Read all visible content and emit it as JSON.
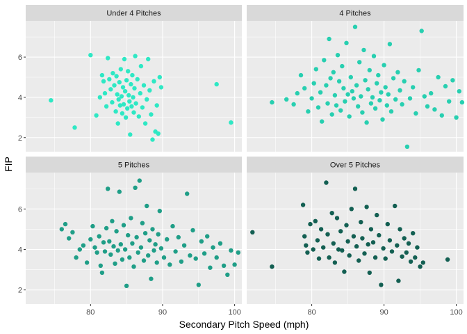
{
  "chart_data": {
    "type": "scatter",
    "xlabel": "Secondary Pitch Speed (mph)",
    "ylabel": "FIP",
    "xlim": [
      71,
      101
    ],
    "ylim": [
      1.3,
      7.8
    ],
    "x_ticks": [
      "80",
      "90",
      "100"
    ],
    "y_ticks": [
      "2",
      "4",
      "6"
    ],
    "grid": true,
    "facets": [
      {
        "name": "Under 4 Pitches",
        "color": "#2ee8c4",
        "points": [
          [
            74.5,
            3.85
          ],
          [
            77.8,
            2.5
          ],
          [
            80.0,
            6.1
          ],
          [
            80.8,
            3.1
          ],
          [
            81.3,
            4.0
          ],
          [
            81.6,
            5.1
          ],
          [
            81.8,
            4.8
          ],
          [
            82.0,
            4.2
          ],
          [
            82.2,
            3.55
          ],
          [
            82.4,
            5.95
          ],
          [
            82.6,
            4.9
          ],
          [
            82.8,
            4.4
          ],
          [
            83.0,
            3.75
          ],
          [
            83.1,
            5.2
          ],
          [
            83.3,
            4.6
          ],
          [
            83.5,
            3.3
          ],
          [
            83.6,
            5.05
          ],
          [
            83.7,
            4.15
          ],
          [
            83.8,
            2.7
          ],
          [
            83.9,
            3.9
          ],
          [
            84.0,
            4.75
          ],
          [
            84.1,
            3.6
          ],
          [
            84.2,
            5.4
          ],
          [
            84.3,
            4.05
          ],
          [
            84.4,
            3.2
          ],
          [
            84.5,
            4.5
          ],
          [
            84.6,
            3.65
          ],
          [
            84.7,
            5.9
          ],
          [
            84.8,
            4.3
          ],
          [
            84.9,
            3.0
          ],
          [
            85.0,
            4.85
          ],
          [
            85.1,
            3.45
          ],
          [
            85.2,
            5.3
          ],
          [
            85.3,
            4.1
          ],
          [
            85.4,
            3.8
          ],
          [
            85.5,
            2.15
          ],
          [
            85.6,
            4.65
          ],
          [
            85.7,
            3.55
          ],
          [
            85.8,
            5.1
          ],
          [
            85.9,
            4.0
          ],
          [
            86.0,
            3.25
          ],
          [
            86.1,
            4.45
          ],
          [
            86.2,
            6.05
          ],
          [
            86.3,
            3.7
          ],
          [
            86.5,
            4.9
          ],
          [
            86.7,
            3.05
          ],
          [
            86.9,
            4.2
          ],
          [
            87.0,
            5.55
          ],
          [
            87.2,
            3.5
          ],
          [
            87.4,
            4.6
          ],
          [
            87.6,
            2.7
          ],
          [
            87.8,
            3.9
          ],
          [
            88.0,
            5.9
          ],
          [
            88.2,
            4.35
          ],
          [
            88.4,
            3.15
          ],
          [
            88.6,
            1.9
          ],
          [
            88.8,
            4.8
          ],
          [
            89.0,
            2.3
          ],
          [
            89.2,
            3.6
          ],
          [
            89.4,
            2.2
          ],
          [
            89.6,
            5.0
          ],
          [
            89.8,
            4.5
          ],
          [
            97.5,
            4.65
          ],
          [
            99.5,
            2.75
          ]
        ]
      },
      {
        "name": "4 Pitches",
        "color": "#27cfb0",
        "points": [
          [
            74.5,
            3.75
          ],
          [
            76.5,
            3.9
          ],
          [
            77.5,
            3.65
          ],
          [
            78.0,
            4.2
          ],
          [
            78.5,
            5.1
          ],
          [
            79.0,
            4.45
          ],
          [
            79.5,
            3.3
          ],
          [
            80.0,
            3.95
          ],
          [
            80.3,
            4.7
          ],
          [
            80.6,
            5.4
          ],
          [
            80.9,
            3.5
          ],
          [
            81.2,
            4.25
          ],
          [
            81.4,
            2.8
          ],
          [
            81.7,
            5.85
          ],
          [
            82.0,
            4.6
          ],
          [
            82.2,
            3.7
          ],
          [
            82.4,
            6.9
          ],
          [
            82.6,
            4.95
          ],
          [
            82.8,
            3.15
          ],
          [
            83.0,
            5.25
          ],
          [
            83.2,
            4.1
          ],
          [
            83.4,
            3.6
          ],
          [
            83.6,
            6.1
          ],
          [
            83.8,
            4.8
          ],
          [
            84.0,
            3.35
          ],
          [
            84.2,
            5.55
          ],
          [
            84.4,
            4.45
          ],
          [
            84.6,
            3.8
          ],
          [
            84.8,
            6.7
          ],
          [
            85.0,
            4.15
          ],
          [
            85.2,
            3.05
          ],
          [
            85.4,
            5.0
          ],
          [
            85.6,
            4.3
          ],
          [
            85.8,
            3.95
          ],
          [
            86.0,
            7.5
          ],
          [
            86.2,
            4.6
          ],
          [
            86.4,
            3.55
          ],
          [
            86.6,
            5.75
          ],
          [
            86.8,
            4.05
          ],
          [
            87.0,
            3.25
          ],
          [
            87.2,
            6.35
          ],
          [
            87.4,
            4.85
          ],
          [
            87.6,
            2.75
          ],
          [
            87.8,
            4.4
          ],
          [
            88.0,
            5.35
          ],
          [
            88.2,
            3.7
          ],
          [
            88.4,
            4.0
          ],
          [
            88.6,
            6.05
          ],
          [
            88.8,
            3.45
          ],
          [
            89.0,
            4.7
          ],
          [
            89.2,
            5.1
          ],
          [
            89.4,
            3.85
          ],
          [
            89.6,
            4.25
          ],
          [
            89.8,
            2.9
          ],
          [
            90.0,
            5.6
          ],
          [
            90.2,
            4.5
          ],
          [
            90.4,
            3.6
          ],
          [
            90.6,
            4.15
          ],
          [
            90.8,
            6.65
          ],
          [
            91.0,
            3.3
          ],
          [
            91.3,
            4.95
          ],
          [
            91.6,
            3.9
          ],
          [
            91.9,
            5.25
          ],
          [
            92.2,
            4.35
          ],
          [
            92.5,
            3.65
          ],
          [
            92.8,
            4.8
          ],
          [
            93.2,
            1.55
          ],
          [
            93.6,
            3.95
          ],
          [
            94.0,
            4.5
          ],
          [
            94.4,
            3.2
          ],
          [
            94.8,
            5.35
          ],
          [
            95.2,
            7.3
          ],
          [
            95.6,
            4.05
          ],
          [
            96.0,
            3.55
          ],
          [
            96.5,
            4.2
          ],
          [
            97.0,
            3.4
          ],
          [
            97.5,
            5.0
          ],
          [
            98.0,
            3.1
          ],
          [
            98.5,
            4.55
          ],
          [
            99.0,
            3.8
          ],
          [
            99.5,
            4.85
          ],
          [
            100.0,
            3.0
          ],
          [
            100.4,
            4.3
          ],
          [
            100.8,
            3.75
          ]
        ]
      },
      {
        "name": "5 Pitches",
        "color": "#1f9e87",
        "points": [
          [
            76.0,
            5.0
          ],
          [
            76.5,
            5.25
          ],
          [
            77.0,
            4.55
          ],
          [
            77.5,
            4.85
          ],
          [
            78.0,
            3.6
          ],
          [
            78.5,
            4.0
          ],
          [
            79.0,
            4.2
          ],
          [
            79.5,
            3.35
          ],
          [
            80.0,
            4.5
          ],
          [
            80.3,
            5.15
          ],
          [
            80.6,
            4.1
          ],
          [
            80.9,
            3.85
          ],
          [
            81.2,
            4.65
          ],
          [
            81.4,
            3.2
          ],
          [
            81.6,
            2.85
          ],
          [
            81.8,
            4.35
          ],
          [
            82.0,
            3.9
          ],
          [
            82.2,
            5.05
          ],
          [
            82.4,
            7.0
          ],
          [
            82.6,
            4.4
          ],
          [
            82.8,
            3.75
          ],
          [
            83.0,
            5.4
          ],
          [
            83.2,
            4.15
          ],
          [
            83.4,
            3.3
          ],
          [
            83.6,
            4.9
          ],
          [
            83.8,
            3.95
          ],
          [
            84.0,
            6.85
          ],
          [
            84.2,
            4.25
          ],
          [
            84.4,
            3.5
          ],
          [
            84.6,
            5.2
          ],
          [
            84.8,
            4.0
          ],
          [
            85.0,
            2.2
          ],
          [
            85.2,
            4.7
          ],
          [
            85.4,
            3.6
          ],
          [
            85.6,
            5.55
          ],
          [
            85.8,
            4.3
          ],
          [
            86.0,
            3.15
          ],
          [
            86.2,
            7.05
          ],
          [
            86.4,
            4.6
          ],
          [
            86.6,
            3.85
          ],
          [
            86.8,
            7.4
          ],
          [
            87.0,
            4.1
          ],
          [
            87.2,
            5.3
          ],
          [
            87.4,
            3.45
          ],
          [
            87.6,
            4.8
          ],
          [
            87.8,
            6.15
          ],
          [
            88.0,
            3.7
          ],
          [
            88.2,
            4.45
          ],
          [
            88.4,
            2.55
          ],
          [
            88.6,
            5.0
          ],
          [
            88.8,
            3.95
          ],
          [
            89.0,
            4.25
          ],
          [
            89.2,
            3.35
          ],
          [
            89.4,
            4.75
          ],
          [
            89.6,
            5.9
          ],
          [
            89.8,
            4.05
          ],
          [
            90.2,
            3.6
          ],
          [
            90.6,
            4.5
          ],
          [
            91.0,
            3.25
          ],
          [
            91.4,
            5.15
          ],
          [
            91.8,
            3.9
          ],
          [
            92.2,
            4.6
          ],
          [
            92.6,
            3.4
          ],
          [
            93.0,
            4.2
          ],
          [
            93.4,
            6.75
          ],
          [
            93.8,
            3.7
          ],
          [
            94.2,
            4.95
          ],
          [
            94.6,
            3.55
          ],
          [
            95.0,
            2.25
          ],
          [
            95.4,
            4.4
          ],
          [
            95.8,
            3.8
          ],
          [
            96.2,
            4.65
          ],
          [
            96.6,
            3.1
          ],
          [
            97.0,
            4.1
          ],
          [
            97.5,
            3.6
          ],
          [
            98.0,
            4.3
          ],
          [
            98.5,
            3.2
          ],
          [
            99.0,
            2.75
          ],
          [
            99.5,
            3.95
          ],
          [
            100.0,
            3.25
          ],
          [
            100.5,
            3.85
          ]
        ]
      },
      {
        "name": "Over 5 Pitches",
        "color": "#135f52",
        "points": [
          [
            71.8,
            4.85
          ],
          [
            74.5,
            3.15
          ],
          [
            78.8,
            6.2
          ],
          [
            79.0,
            4.65
          ],
          [
            79.2,
            4.2
          ],
          [
            79.4,
            3.85
          ],
          [
            79.8,
            5.25
          ],
          [
            80.2,
            4.0
          ],
          [
            80.5,
            5.4
          ],
          [
            80.8,
            4.45
          ],
          [
            81.0,
            3.55
          ],
          [
            81.3,
            5.0
          ],
          [
            81.6,
            4.1
          ],
          [
            82.0,
            7.3
          ],
          [
            82.2,
            4.75
          ],
          [
            82.4,
            3.6
          ],
          [
            82.8,
            5.8
          ],
          [
            83.0,
            4.3
          ],
          [
            83.2,
            3.35
          ],
          [
            83.5,
            5.55
          ],
          [
            83.7,
            4.0
          ],
          [
            84.0,
            4.9
          ],
          [
            84.2,
            3.95
          ],
          [
            84.5,
            2.9
          ],
          [
            84.8,
            5.2
          ],
          [
            85.0,
            4.4
          ],
          [
            85.2,
            3.7
          ],
          [
            85.5,
            6.0
          ],
          [
            85.8,
            4.65
          ],
          [
            86.0,
            7.0
          ],
          [
            86.2,
            4.15
          ],
          [
            86.5,
            3.45
          ],
          [
            86.8,
            5.35
          ],
          [
            87.0,
            4.55
          ],
          [
            87.3,
            3.8
          ],
          [
            87.6,
            6.1
          ],
          [
            87.8,
            4.25
          ],
          [
            88.0,
            2.85
          ],
          [
            88.2,
            5.0
          ],
          [
            88.5,
            4.35
          ],
          [
            88.8,
            3.6
          ],
          [
            89.0,
            5.7
          ],
          [
            89.3,
            4.7
          ],
          [
            89.6,
            2.25
          ],
          [
            89.9,
            4.05
          ],
          [
            90.2,
            3.55
          ],
          [
            90.5,
            5.25
          ],
          [
            90.8,
            4.45
          ],
          [
            91.1,
            3.9
          ],
          [
            91.5,
            6.15
          ],
          [
            91.8,
            4.2
          ],
          [
            92.0,
            2.45
          ],
          [
            92.2,
            5.0
          ],
          [
            92.5,
            3.65
          ],
          [
            92.8,
            4.55
          ],
          [
            93.1,
            3.85
          ],
          [
            93.4,
            4.3
          ],
          [
            93.7,
            3.4
          ],
          [
            94.0,
            4.8
          ],
          [
            94.3,
            3.6
          ],
          [
            94.6,
            4.1
          ],
          [
            95.0,
            3.15
          ],
          [
            95.4,
            3.35
          ],
          [
            98.8,
            3.5
          ]
        ]
      }
    ]
  }
}
